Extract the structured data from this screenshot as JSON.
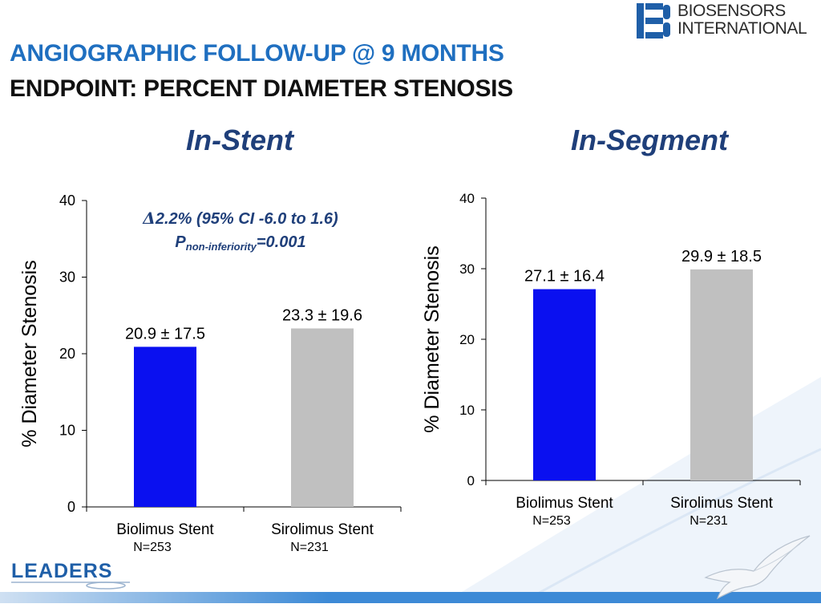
{
  "header": {
    "title": "ANGIOGRAPHIC FOLLOW-UP @ 9 MONTHS",
    "subtitle": "ENDPOINT: PERCENT DIAMETER STENOSIS"
  },
  "brand": {
    "line1": "BIOSENSORS",
    "line2": "INTERNATIONAL"
  },
  "footer": {
    "logo_text": "LEADERS"
  },
  "colors": {
    "title_blue": "#1f6fc0",
    "panel_title": "#1f3f7a",
    "biolimus": "#0a10f0",
    "sirolimus": "#c0c0c0",
    "annotation": "#1f3f7a"
  },
  "chart_data": [
    {
      "type": "bar",
      "title": "In-Stent",
      "categories": [
        "Biolimus Stent",
        "Sirolimus Stent"
      ],
      "n_labels": [
        "N=253",
        "N=231"
      ],
      "values": [
        20.9,
        23.3
      ],
      "data_labels": [
        "20.9 ± 17.5",
        "23.3 ± 19.6"
      ],
      "bar_colors": [
        "#0a10f0",
        "#c0c0c0"
      ],
      "ylabel": "% Diameter Stenosis",
      "ylim": [
        0,
        40
      ],
      "yticks": [
        0,
        10,
        20,
        30,
        40
      ],
      "annotation": {
        "delta": "2.2% (95% CI -6.0 to 1.6)",
        "p_prefix": "P",
        "p_sub": "non-inferiority",
        "p_value": "=0.001"
      }
    },
    {
      "type": "bar",
      "title": "In-Segment",
      "categories": [
        "Biolimus Stent",
        "Sirolimus Stent"
      ],
      "n_labels": [
        "N=253",
        "N=231"
      ],
      "values": [
        27.1,
        29.9
      ],
      "data_labels": [
        "27.1 ± 16.4",
        "29.9 ± 18.5"
      ],
      "bar_colors": [
        "#0a10f0",
        "#c0c0c0"
      ],
      "ylabel": "% Diameter Stenosis",
      "ylim": [
        0,
        40
      ],
      "yticks": [
        0,
        10,
        20,
        30,
        40
      ]
    }
  ]
}
